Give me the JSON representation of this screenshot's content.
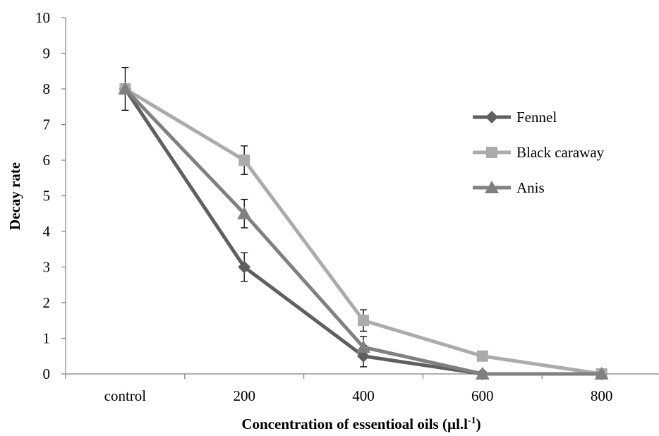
{
  "chart_data": {
    "type": "line",
    "title": "",
    "categories": [
      "control",
      "200",
      "400",
      "600",
      "800"
    ],
    "xlabel": "Concentration of essentioal oils (µl.l",
    "xlabel_sup": "-1",
    "xlabel_suffix": ")",
    "ylabel": "Decay rate",
    "ylim": [
      0,
      10
    ],
    "yticks": [
      "0",
      "1",
      "2",
      "3",
      "4",
      "5",
      "6",
      "7",
      "8",
      "9",
      "10"
    ],
    "grid": false,
    "legend_position": "right",
    "series": [
      {
        "name": "Fennel",
        "marker": "diamond",
        "color": "#5f5f5f",
        "values": [
          8,
          3,
          0.5,
          0,
          0
        ],
        "error": [
          0.6,
          0.4,
          0.3,
          0,
          0
        ]
      },
      {
        "name": "Black caraway",
        "marker": "square",
        "color": "#ababab",
        "values": [
          8,
          6,
          1.5,
          0.5,
          0
        ],
        "error": [
          0,
          0.4,
          0.3,
          0,
          0
        ]
      },
      {
        "name": "Anis",
        "marker": "triangle",
        "color": "#808080",
        "values": [
          8,
          4.5,
          0.75,
          0,
          0
        ],
        "error": [
          0,
          0.4,
          0.3,
          0,
          0
        ]
      }
    ]
  }
}
